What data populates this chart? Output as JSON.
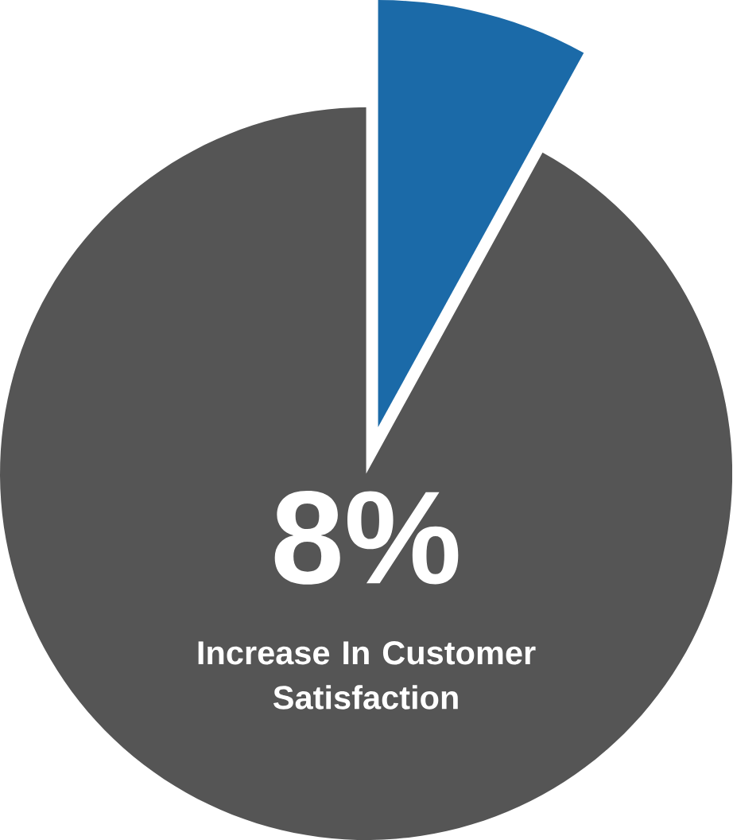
{
  "chart_data": {
    "type": "pie",
    "categories": [
      null,
      null
    ],
    "values": [
      8,
      92
    ],
    "colors": [
      "#1b6aa8",
      "#555555"
    ],
    "annotations": [
      "8%",
      "Increase In Customer Satisfaction"
    ]
  }
}
